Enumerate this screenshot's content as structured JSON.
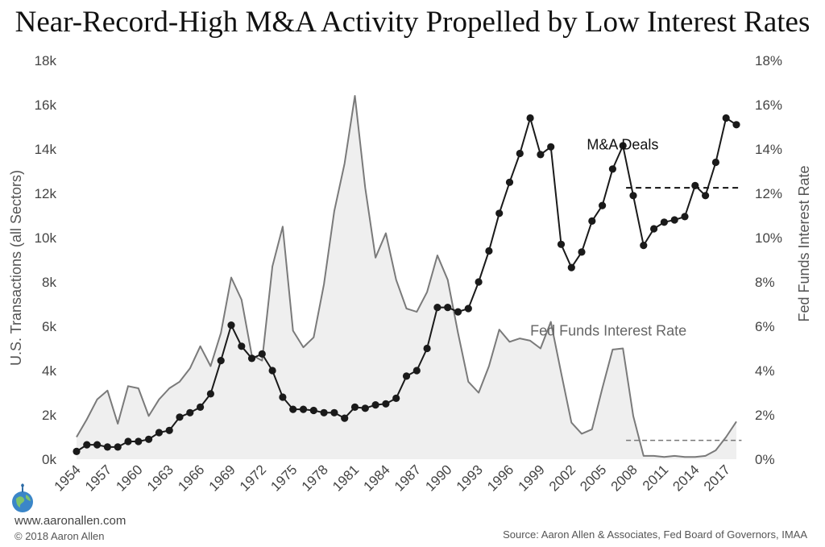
{
  "title": "Near-Record-High M&A Activity Propelled by Low Interest Rates",
  "footer": {
    "website": "www.aaronallen.com",
    "copyright": "© 2018 Aaron Allen",
    "source": "Source: Aaron Allen & Associates, Fed Board of Governors, IMAA"
  },
  "chart_data": {
    "type": "line",
    "title": "Near-Record-High M&A Activity Propelled by Low Interest Rates",
    "ylabel_left": "U.S. Transactions (all Sectors)",
    "ylabel_right": "Fed Funds Interest Rate",
    "ylim_left": [
      0,
      18000
    ],
    "ylim_right": [
      0,
      18
    ],
    "y_ticks_left": [
      "0k",
      "2k",
      "4k",
      "6k",
      "8k",
      "10k",
      "12k",
      "14k",
      "16k",
      "18k"
    ],
    "y_ticks_right": [
      "0%",
      "2%",
      "4%",
      "6%",
      "8%",
      "10%",
      "12%",
      "14%",
      "16%",
      "18%"
    ],
    "x_ticks": [
      "1954",
      "1957",
      "1960",
      "1963",
      "1966",
      "1969",
      "1972",
      "1975",
      "1978",
      "1981",
      "1984",
      "1987",
      "1990",
      "1993",
      "1996",
      "1999",
      "2002",
      "2005",
      "2008",
      "2011",
      "2014",
      "2017"
    ],
    "x_range": [
      1954,
      2018
    ],
    "grid": false,
    "series": [
      {
        "name": "M&A Deals",
        "axis": "left",
        "style": "black line with round markers",
        "color": "#1a1a1a",
        "x": [
          1954,
          1955,
          1956,
          1957,
          1958,
          1959,
          1960,
          1961,
          1962,
          1963,
          1964,
          1965,
          1966,
          1967,
          1968,
          1969,
          1970,
          1971,
          1972,
          1973,
          1974,
          1975,
          1976,
          1977,
          1978,
          1979,
          1980,
          1981,
          1982,
          1983,
          1984,
          1985,
          1986,
          1987,
          1988,
          1989,
          1990,
          1991,
          1992,
          1993,
          1994,
          1995,
          1996,
          1997,
          1998,
          1999,
          2000,
          2001,
          2002,
          2003,
          2004,
          2005,
          2006,
          2007,
          2008,
          2009,
          2010,
          2011,
          2012,
          2013,
          2014,
          2015,
          2016,
          2017,
          2018
        ],
        "values": [
          350,
          650,
          650,
          550,
          550,
          800,
          800,
          900,
          1200,
          1300,
          1900,
          2100,
          2350,
          2950,
          4450,
          6050,
          5100,
          4550,
          4750,
          4000,
          2800,
          2250,
          2250,
          2200,
          2100,
          2100,
          1850,
          2350,
          2300,
          2450,
          2500,
          2750,
          3750,
          4000,
          5000,
          6850,
          6850,
          6650,
          6800,
          8000,
          9400,
          11100,
          12500,
          13800,
          15400,
          13750,
          14100,
          9700,
          8650,
          9350,
          10750,
          11450,
          13100,
          14150,
          11900,
          9650,
          10400,
          10700,
          10800,
          10950,
          12350,
          11900,
          13400,
          15400,
          15100
        ]
      },
      {
        "name": "Fed Funds Interest Rate",
        "axis": "right",
        "style": "grey line with light grey area fill",
        "color": "#7a7a7a",
        "fill": "#efefef",
        "x": [
          1954,
          1955,
          1956,
          1957,
          1958,
          1959,
          1960,
          1961,
          1962,
          1963,
          1964,
          1965,
          1966,
          1967,
          1968,
          1969,
          1970,
          1971,
          1972,
          1973,
          1974,
          1975,
          1976,
          1977,
          1978,
          1979,
          1980,
          1981,
          1982,
          1983,
          1984,
          1985,
          1986,
          1987,
          1988,
          1989,
          1990,
          1991,
          1992,
          1993,
          1994,
          1995,
          1996,
          1997,
          1998,
          1999,
          2000,
          2001,
          2002,
          2003,
          2004,
          2005,
          2006,
          2007,
          2008,
          2009,
          2010,
          2011,
          2012,
          2013,
          2014,
          2015,
          2016,
          2017,
          2018
        ],
        "values": [
          1.0,
          1.8,
          2.7,
          3.1,
          1.6,
          3.3,
          3.2,
          1.95,
          2.7,
          3.2,
          3.5,
          4.1,
          5.1,
          4.2,
          5.7,
          8.2,
          7.2,
          4.7,
          4.45,
          8.7,
          10.5,
          5.8,
          5.05,
          5.5,
          7.9,
          11.2,
          13.35,
          16.4,
          12.25,
          9.1,
          10.2,
          8.1,
          6.8,
          6.65,
          7.55,
          9.2,
          8.1,
          5.7,
          3.5,
          3.0,
          4.2,
          5.85,
          5.3,
          5.45,
          5.35,
          5.0,
          6.2,
          3.9,
          1.65,
          1.15,
          1.35,
          3.2,
          4.95,
          5.0,
          1.95,
          0.15,
          0.15,
          0.1,
          0.15,
          0.1,
          0.1,
          0.15,
          0.4,
          1.0,
          1.7
        ]
      }
    ],
    "annotations": [
      {
        "text": "M&A Deals",
        "type": "series label",
        "x": 2003.5,
        "y": 14200,
        "axis": "left",
        "color": "#111"
      },
      {
        "text": "Fed Funds Interest Rate",
        "type": "series label",
        "x": 1998,
        "y": 5.8,
        "axis": "right",
        "color": "#666"
      },
      {
        "type": "dashed reference line",
        "series": "M&A Deals",
        "axis": "left",
        "x": [
          2007.3,
          2018.5
        ],
        "y": 12250,
        "color": "#111"
      },
      {
        "type": "dashed reference line",
        "series": "Fed Funds Interest Rate",
        "axis": "right",
        "x": [
          2007.3,
          2018.5
        ],
        "y": 0.85,
        "color": "#777"
      }
    ]
  }
}
